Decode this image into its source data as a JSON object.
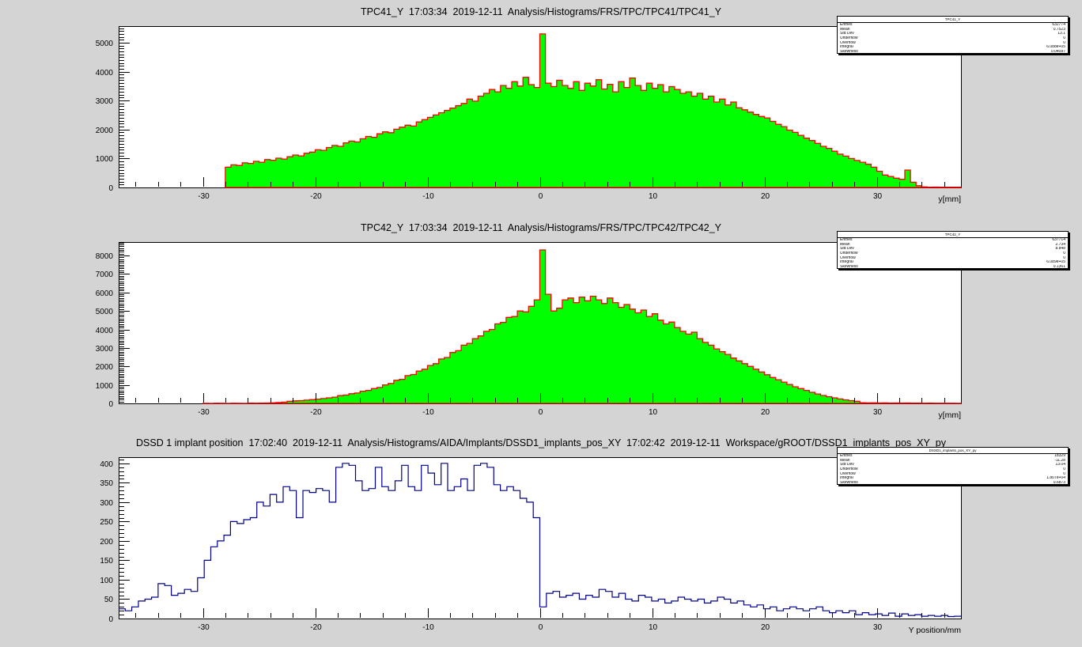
{
  "canvas": {
    "background": "#d4d4d4",
    "frame_background": "#ffffff",
    "frame_border": "#000000"
  },
  "stats_labels": [
    "Entries",
    "Mean",
    "Std Dev",
    "Underflow",
    "Overflow",
    "Integral",
    "Skewness"
  ],
  "chart_data": [
    {
      "id": "tpc41-y",
      "type": "bar",
      "title": "TPC41_Y  17:03:34  2019-12-11  Analysis/Histograms/FRS/TPC/TPC41/TPC41_Y",
      "xlabel": "y[mm]",
      "ylabel": "",
      "xlim": [
        -37.5,
        37.5
      ],
      "ylim": [
        0,
        5570
      ],
      "x_ticks": [
        -30,
        -20,
        -10,
        0,
        10,
        20,
        30
      ],
      "x_minor_step": 2,
      "y_ticks": [
        0,
        1000,
        2000,
        3000,
        4000,
        5000
      ],
      "y_minor_step": 100,
      "grid": false,
      "fill_color": "#00ff00",
      "line_color": "#ff0000",
      "line_only": false,
      "bin_start": -37.5,
      "bin_width": 0.5,
      "values": [
        0,
        0,
        0,
        0,
        0,
        0,
        0,
        0,
        0,
        0,
        0,
        0,
        0,
        0,
        0,
        0,
        0,
        0,
        0,
        700,
        780,
        760,
        850,
        830,
        900,
        870,
        960,
        940,
        1010,
        980,
        1060,
        1120,
        1090,
        1180,
        1220,
        1300,
        1280,
        1380,
        1450,
        1420,
        1540,
        1600,
        1570,
        1680,
        1760,
        1730,
        1850,
        1920,
        1890,
        2010,
        2080,
        2150,
        2120,
        2260,
        2340,
        2420,
        2500,
        2580,
        2660,
        2740,
        2820,
        2900,
        3050,
        2980,
        3150,
        3250,
        3380,
        3300,
        3520,
        3420,
        3650,
        3500,
        3800,
        3550,
        3450,
        5300,
        3600,
        3480,
        3700,
        3520,
        3420,
        3650,
        3350,
        3600,
        3500,
        3720,
        3400,
        3560,
        3300,
        3650,
        3450,
        3780,
        3520,
        3350,
        3600,
        3420,
        3550,
        3300,
        3480,
        3380,
        3250,
        3300,
        3150,
        3250,
        3050,
        3150,
        2950,
        3050,
        2850,
        2950,
        2750,
        2680,
        2600,
        2520,
        2450,
        2400,
        2280,
        2180,
        2100,
        1980,
        1900,
        1800,
        1700,
        1620,
        1520,
        1420,
        1350,
        1250,
        1150,
        1080,
        1000,
        930,
        870,
        800,
        700,
        560,
        430,
        380,
        320,
        280,
        600,
        180,
        60,
        20,
        10,
        15,
        8,
        12,
        10,
        8
      ],
      "stats": {
        "title": "TPC41_Y",
        "rows": [
          {
            "label": "Entries",
            "value": "632774"
          },
          {
            "label": "Mean",
            "value": "0.7523"
          },
          {
            "label": "Std Dev",
            "value": "13.1"
          },
          {
            "label": "Underflow",
            "value": "0"
          },
          {
            "label": "Overflow",
            "value": "0"
          },
          {
            "label": "Integral",
            "value": "6.088e+05"
          },
          {
            "label": "Skewness",
            "value": "0.04097"
          }
        ]
      }
    },
    {
      "id": "tpc42-y",
      "type": "bar",
      "title": "TPC42_Y  17:03:34  2019-12-11  Analysis/Histograms/FRS/TPC/TPC42/TPC42_Y",
      "xlabel": "y[mm]",
      "ylabel": "",
      "xlim": [
        -37.5,
        37.5
      ],
      "ylim": [
        0,
        8730
      ],
      "x_ticks": [
        -30,
        -20,
        -10,
        0,
        10,
        20,
        30
      ],
      "x_minor_step": 2,
      "y_ticks": [
        0,
        1000,
        2000,
        3000,
        4000,
        5000,
        6000,
        7000,
        8000
      ],
      "y_minor_step": 100,
      "grid": false,
      "fill_color": "#00ff00",
      "line_color": "#ff0000",
      "line_only": false,
      "bin_start": -37.5,
      "bin_width": 0.5,
      "values": [
        0,
        0,
        0,
        0,
        0,
        0,
        0,
        0,
        0,
        0,
        0,
        0,
        0,
        0,
        0,
        5,
        0,
        8,
        5,
        0,
        10,
        6,
        0,
        12,
        8,
        15,
        20,
        30,
        45,
        70,
        110,
        135,
        150,
        175,
        200,
        230,
        260,
        300,
        340,
        420,
        450,
        520,
        560,
        660,
        700,
        800,
        860,
        1000,
        1080,
        1250,
        1300,
        1500,
        1560,
        1750,
        1850,
        2050,
        2150,
        2400,
        2480,
        2750,
        2850,
        3150,
        3250,
        3500,
        3650,
        3900,
        4000,
        4300,
        4380,
        4650,
        4700,
        5000,
        4950,
        5250,
        5600,
        8300,
        5900,
        5000,
        5150,
        5600,
        5700,
        5450,
        5750,
        5550,
        5800,
        5600,
        5400,
        5700,
        5450,
        5200,
        5350,
        5100,
        4900,
        5050,
        4700,
        4850,
        4500,
        4300,
        4400,
        4100,
        3900,
        3750,
        3850,
        3500,
        3300,
        3150,
        2950,
        2800,
        2650,
        2450,
        2300,
        2150,
        2000,
        1850,
        1700,
        1550,
        1400,
        1280,
        1150,
        1020,
        900,
        800,
        700,
        600,
        510,
        430,
        360,
        300,
        240,
        190,
        150,
        110,
        40,
        25,
        30,
        20,
        25,
        15,
        20,
        15,
        20,
        12,
        15,
        10,
        12,
        10,
        8,
        10,
        8,
        6
      ],
      "stats": {
        "title": "TPC42_Y",
        "rows": [
          {
            "label": "Entries",
            "value": "637714"
          },
          {
            "label": "Mean",
            "value": "2.734"
          },
          {
            "label": "Std Dev",
            "value": "8.848"
          },
          {
            "label": "Underflow",
            "value": "0"
          },
          {
            "label": "Overflow",
            "value": "0"
          },
          {
            "label": "Integral",
            "value": "6.089e+05"
          },
          {
            "label": "Skewness",
            "value": "0.1361"
          }
        ]
      }
    },
    {
      "id": "dssd1-implants-y",
      "type": "bar",
      "title": "DSSD 1 implant position  17:02:40  2019-12-11  Analysis/Histograms/AIDA/Implants/DSSD1_implants_pos_XY  17:02:42  2019-12-11  Workspace/gROOT/DSSD1_implants_pos_XY_py",
      "xlabel": "Y position/mm",
      "ylabel": "",
      "xlim": [
        -37.5,
        37.5
      ],
      "ylim": [
        0,
        416
      ],
      "x_ticks": [
        -30,
        -20,
        -10,
        0,
        10,
        20,
        30
      ],
      "x_minor_step": 2,
      "y_ticks": [
        0,
        50,
        100,
        150,
        200,
        250,
        300,
        350,
        400
      ],
      "y_minor_step": 10,
      "grid": false,
      "fill_color": "none",
      "line_color": "#00008b",
      "line_only": true,
      "bin_start": -37.5,
      "bin_width": 0.5859375,
      "values": [
        25,
        20,
        30,
        45,
        50,
        55,
        90,
        85,
        60,
        65,
        75,
        70,
        105,
        150,
        185,
        200,
        215,
        250,
        245,
        255,
        260,
        300,
        290,
        320,
        300,
        340,
        330,
        260,
        330,
        325,
        335,
        330,
        300,
        390,
        400,
        395,
        355,
        330,
        335,
        390,
        340,
        330,
        355,
        395,
        340,
        330,
        395,
        375,
        345,
        400,
        330,
        340,
        360,
        330,
        395,
        400,
        390,
        345,
        330,
        340,
        330,
        310,
        300,
        260,
        30,
        65,
        70,
        55,
        60,
        65,
        50,
        60,
        55,
        75,
        70,
        55,
        65,
        50,
        45,
        60,
        55,
        45,
        50,
        40,
        45,
        55,
        50,
        45,
        50,
        40,
        45,
        55,
        50,
        40,
        45,
        35,
        30,
        35,
        25,
        30,
        20,
        25,
        30,
        25,
        20,
        25,
        30,
        20,
        15,
        20,
        15,
        20,
        10,
        15,
        10,
        12,
        8,
        14,
        6,
        12,
        8,
        10,
        6,
        8,
        6,
        8,
        5,
        6
      ],
      "stats": {
        "title": "DSSD1_implants_pos_XY_py",
        "rows": [
          {
            "label": "Entries",
            "value": "18329"
          },
          {
            "label": "Mean",
            "value": "-11.28"
          },
          {
            "label": "Std Dev",
            "value": "13.04"
          },
          {
            "label": "Underflow",
            "value": "0"
          },
          {
            "label": "Overflow",
            "value": "0"
          },
          {
            "label": "Integral",
            "value": "1.807e+04"
          },
          {
            "label": "Skewness",
            "value": "0.6873"
          }
        ]
      }
    }
  ]
}
